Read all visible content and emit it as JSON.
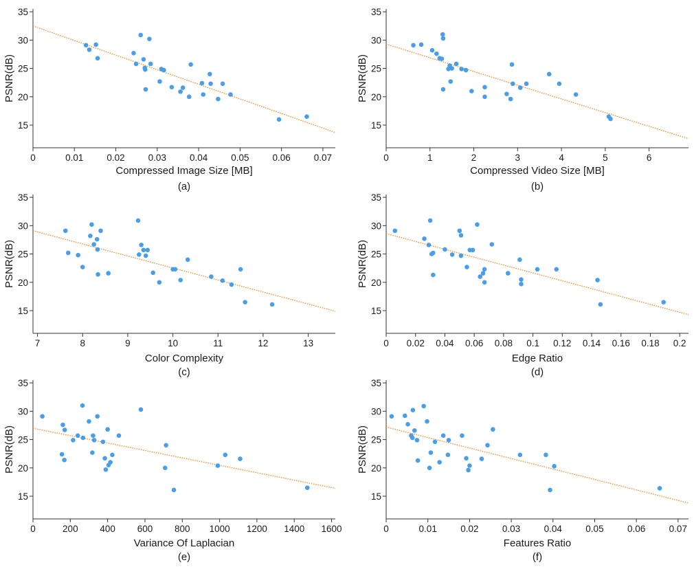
{
  "figure": {
    "ylabel_common": "PSNR(dB)"
  },
  "chart_data": [
    {
      "type": "scatter",
      "panel": "(a)",
      "xlabel": "Compressed Image Size [MB]",
      "ylabel": "PSNR(dB)",
      "xlim": [
        0,
        0.073
      ],
      "ylim": [
        11,
        35.5
      ],
      "xticks": [
        0,
        0.01,
        0.02,
        0.03,
        0.04,
        0.05,
        0.06,
        0.07
      ],
      "xtick_labels": [
        "0",
        "0.01",
        "0.02",
        "0.03",
        "0.04",
        "0.05",
        "0.06",
        "0.07"
      ],
      "yticks": [
        15,
        20,
        25,
        30,
        35
      ],
      "ytick_labels": [
        "15",
        "20",
        "25",
        "30",
        "35"
      ],
      "trendline": [
        [
          0,
          32.5
        ],
        [
          0.073,
          13.7
        ]
      ],
      "colors": {
        "points": "#4a9ee6",
        "trendline": "#e8963a"
      },
      "points": [
        [
          0.0128,
          29.1
        ],
        [
          0.0136,
          28.3
        ],
        [
          0.0152,
          29.2
        ],
        [
          0.0156,
          26.8
        ],
        [
          0.0243,
          27.7
        ],
        [
          0.0249,
          25.8
        ],
        [
          0.026,
          30.9
        ],
        [
          0.0267,
          26.6
        ],
        [
          0.027,
          25.1
        ],
        [
          0.0271,
          24.8
        ],
        [
          0.0272,
          21.3
        ],
        [
          0.0281,
          30.2
        ],
        [
          0.0284,
          25.8
        ],
        [
          0.0306,
          22.7
        ],
        [
          0.031,
          24.9
        ],
        [
          0.0316,
          24.7
        ],
        [
          0.0335,
          21.7
        ],
        [
          0.0356,
          20.9
        ],
        [
          0.0362,
          21.6
        ],
        [
          0.0377,
          20.0
        ],
        [
          0.0381,
          25.7
        ],
        [
          0.0408,
          22.4
        ],
        [
          0.0411,
          20.4
        ],
        [
          0.0427,
          24.0
        ],
        [
          0.0429,
          22.3
        ],
        [
          0.0447,
          19.6
        ],
        [
          0.0458,
          22.3
        ],
        [
          0.0477,
          20.4
        ],
        [
          0.0594,
          16.0
        ],
        [
          0.0661,
          16.5
        ]
      ]
    },
    {
      "type": "scatter",
      "panel": "(b)",
      "xlabel": "Compressed Video Size [MB]",
      "ylabel": "PSNR(dB)",
      "xlim": [
        0,
        6.9
      ],
      "ylim": [
        11,
        35.5
      ],
      "xticks": [
        0,
        1,
        2,
        3,
        4,
        5,
        6
      ],
      "xtick_labels": [
        "0",
        "1",
        "2",
        "3",
        "4",
        "5",
        "6"
      ],
      "yticks": [
        15,
        20,
        25,
        30,
        35
      ],
      "ytick_labels": [
        "15",
        "20",
        "25",
        "30",
        "35"
      ],
      "trendline": [
        [
          0,
          29.3
        ],
        [
          6.9,
          12.6
        ]
      ],
      "colors": {
        "points": "#4a9ee6",
        "trendline": "#e8963a"
      },
      "points": [
        [
          0.62,
          29.1
        ],
        [
          0.8,
          29.2
        ],
        [
          1.05,
          28.2
        ],
        [
          1.15,
          27.6
        ],
        [
          1.22,
          26.8
        ],
        [
          1.27,
          26.7
        ],
        [
          1.29,
          31.0
        ],
        [
          1.3,
          30.3
        ],
        [
          1.3,
          21.3
        ],
        [
          1.42,
          24.9
        ],
        [
          1.45,
          25.5
        ],
        [
          1.47,
          22.7
        ],
        [
          1.5,
          25.0
        ],
        [
          1.6,
          25.8
        ],
        [
          1.72,
          24.9
        ],
        [
          1.82,
          24.7
        ],
        [
          1.95,
          21.0
        ],
        [
          2.25,
          21.7
        ],
        [
          2.25,
          20.0
        ],
        [
          2.75,
          20.5
        ],
        [
          2.84,
          19.6
        ],
        [
          2.87,
          25.7
        ],
        [
          2.89,
          22.3
        ],
        [
          3.06,
          21.6
        ],
        [
          3.2,
          22.3
        ],
        [
          3.72,
          24.0
        ],
        [
          3.95,
          22.3
        ],
        [
          4.33,
          20.4
        ],
        [
          5.08,
          16.5
        ],
        [
          5.12,
          16.1
        ]
      ]
    },
    {
      "type": "scatter",
      "panel": "(c)",
      "xlabel": "Color Complexity",
      "ylabel": "PSNR(dB)",
      "xlim": [
        6.9,
        13.6
      ],
      "ylim": [
        11,
        35.5
      ],
      "xticks": [
        7,
        8,
        9,
        10,
        11,
        12,
        13
      ],
      "xtick_labels": [
        "7",
        "8",
        "9",
        "10",
        "11",
        "12",
        "13"
      ],
      "yticks": [
        15,
        20,
        25,
        30,
        35
      ],
      "ytick_labels": [
        "15",
        "20",
        "25",
        "30",
        "35"
      ],
      "trendline": [
        [
          6.9,
          29.1
        ],
        [
          13.6,
          14.9
        ]
      ],
      "colors": {
        "points": "#4a9ee6",
        "trendline": "#e8963a"
      },
      "points": [
        [
          7.62,
          29.1
        ],
        [
          7.68,
          25.2
        ],
        [
          7.9,
          24.8
        ],
        [
          8.0,
          22.7
        ],
        [
          8.17,
          28.2
        ],
        [
          8.2,
          30.2
        ],
        [
          8.25,
          26.7
        ],
        [
          8.32,
          27.6
        ],
        [
          8.33,
          25.8
        ],
        [
          8.34,
          21.4
        ],
        [
          8.4,
          29.1
        ],
        [
          8.57,
          21.6
        ],
        [
          9.23,
          30.9
        ],
        [
          9.25,
          24.9
        ],
        [
          9.3,
          26.6
        ],
        [
          9.35,
          25.7
        ],
        [
          9.4,
          24.7
        ],
        [
          9.44,
          25.7
        ],
        [
          9.56,
          21.7
        ],
        [
          9.7,
          20.0
        ],
        [
          10.0,
          22.3
        ],
        [
          10.05,
          22.3
        ],
        [
          10.17,
          20.4
        ],
        [
          10.33,
          24.0
        ],
        [
          10.85,
          21.0
        ],
        [
          11.1,
          20.3
        ],
        [
          11.3,
          19.6
        ],
        [
          11.5,
          22.3
        ],
        [
          11.6,
          16.5
        ],
        [
          12.2,
          16.1
        ]
      ]
    },
    {
      "type": "scatter",
      "panel": "(d)",
      "xlabel": "Edge Ratio",
      "ylabel": "PSNR(dB)",
      "xlim": [
        0,
        0.206
      ],
      "ylim": [
        11,
        35.5
      ],
      "xticks": [
        0,
        0.02,
        0.04,
        0.06,
        0.08,
        0.1,
        0.12,
        0.14,
        0.16,
        0.18,
        0.2
      ],
      "xtick_labels": [
        "0",
        "0.02",
        "0.04",
        "0.06",
        "0.08",
        "0.1",
        "0.12",
        "0.14",
        "0.16",
        "0.18",
        "0.2"
      ],
      "yticks": [
        15,
        20,
        25,
        30,
        35
      ],
      "ytick_labels": [
        "15",
        "20",
        "25",
        "30",
        "35"
      ],
      "trendline": [
        [
          0,
          28.6
        ],
        [
          0.206,
          14.3
        ]
      ],
      "colors": {
        "points": "#4a9ee6",
        "trendline": "#e8963a"
      },
      "points": [
        [
          0.006,
          29.1
        ],
        [
          0.026,
          27.7
        ],
        [
          0.029,
          26.6
        ],
        [
          0.03,
          30.9
        ],
        [
          0.031,
          25.0
        ],
        [
          0.032,
          25.2
        ],
        [
          0.032,
          21.3
        ],
        [
          0.04,
          25.8
        ],
        [
          0.045,
          24.9
        ],
        [
          0.05,
          29.1
        ],
        [
          0.051,
          28.3
        ],
        [
          0.051,
          24.7
        ],
        [
          0.055,
          22.7
        ],
        [
          0.057,
          25.7
        ],
        [
          0.059,
          25.7
        ],
        [
          0.062,
          30.2
        ],
        [
          0.064,
          21.0
        ],
        [
          0.066,
          21.6
        ],
        [
          0.067,
          22.3
        ],
        [
          0.067,
          20.0
        ],
        [
          0.072,
          26.7
        ],
        [
          0.083,
          21.6
        ],
        [
          0.091,
          24.0
        ],
        [
          0.092,
          20.5
        ],
        [
          0.092,
          19.7
        ],
        [
          0.103,
          22.3
        ],
        [
          0.116,
          22.3
        ],
        [
          0.144,
          20.4
        ],
        [
          0.146,
          16.1
        ],
        [
          0.189,
          16.5
        ]
      ]
    },
    {
      "type": "scatter",
      "panel": "(e)",
      "xlabel": "Variance Of Laplacian",
      "ylabel": "PSNR(dB)",
      "xlim": [
        0,
        1620
      ],
      "ylim": [
        11,
        35.5
      ],
      "xticks": [
        0,
        200,
        400,
        600,
        800,
        1000,
        1200,
        1400,
        1600
      ],
      "xtick_labels": [
        "0",
        "200",
        "400",
        "600",
        "800",
        "1000",
        "1200",
        "1400",
        "1600"
      ],
      "yticks": [
        15,
        20,
        25,
        30,
        35
      ],
      "ytick_labels": [
        "15",
        "20",
        "25",
        "30",
        "35"
      ],
      "trendline": [
        [
          0,
          27.0
        ],
        [
          1620,
          16.4
        ]
      ],
      "colors": {
        "points": "#4a9ee6",
        "trendline": "#e8963a"
      },
      "points": [
        [
          50,
          29.1
        ],
        [
          155,
          22.4
        ],
        [
          160,
          27.6
        ],
        [
          168,
          21.4
        ],
        [
          170,
          26.7
        ],
        [
          215,
          24.9
        ],
        [
          240,
          25.7
        ],
        [
          265,
          31.0
        ],
        [
          268,
          25.3
        ],
        [
          300,
          28.2
        ],
        [
          318,
          22.7
        ],
        [
          322,
          25.7
        ],
        [
          328,
          24.9
        ],
        [
          345,
          29.1
        ],
        [
          375,
          24.6
        ],
        [
          385,
          21.7
        ],
        [
          390,
          19.7
        ],
        [
          400,
          26.8
        ],
        [
          405,
          20.5
        ],
        [
          415,
          21.0
        ],
        [
          425,
          22.3
        ],
        [
          460,
          25.7
        ],
        [
          578,
          30.3
        ],
        [
          708,
          20.0
        ],
        [
          713,
          24.0
        ],
        [
          755,
          16.1
        ],
        [
          990,
          20.4
        ],
        [
          1030,
          22.3
        ],
        [
          1110,
          21.6
        ],
        [
          1470,
          16.5
        ]
      ]
    },
    {
      "type": "scatter",
      "panel": "(f)",
      "xlabel": "Features Ratio",
      "ylabel": "PSNR(dB)",
      "xlim": [
        0,
        0.0725
      ],
      "ylim": [
        11,
        35.5
      ],
      "xticks": [
        0,
        0.01,
        0.02,
        0.03,
        0.04,
        0.05,
        0.06,
        0.07
      ],
      "xtick_labels": [
        "0",
        "0.01",
        "0.02",
        "0.03",
        "0.04",
        "0.05",
        "0.06",
        "0.07"
      ],
      "yticks": [
        15,
        20,
        25,
        30,
        35
      ],
      "ytick_labels": [
        "15",
        "20",
        "25",
        "30",
        "35"
      ],
      "trendline": [
        [
          0,
          27.2
        ],
        [
          0.0725,
          13.8
        ]
      ],
      "colors": {
        "points": "#4a9ee6",
        "trendline": "#e8963a"
      },
      "points": [
        [
          0.0013,
          29.1
        ],
        [
          0.0045,
          29.2
        ],
        [
          0.0052,
          27.7
        ],
        [
          0.006,
          25.7
        ],
        [
          0.0063,
          25.3
        ],
        [
          0.0064,
          30.2
        ],
        [
          0.0068,
          26.6
        ],
        [
          0.0074,
          24.9
        ],
        [
          0.0076,
          21.3
        ],
        [
          0.009,
          30.9
        ],
        [
          0.0098,
          28.2
        ],
        [
          0.0104,
          20.0
        ],
        [
          0.0107,
          22.7
        ],
        [
          0.0117,
          24.6
        ],
        [
          0.0128,
          21.0
        ],
        [
          0.0137,
          25.7
        ],
        [
          0.0148,
          22.3
        ],
        [
          0.015,
          24.9
        ],
        [
          0.0182,
          25.7
        ],
        [
          0.0192,
          21.7
        ],
        [
          0.0197,
          19.6
        ],
        [
          0.02,
          20.4
        ],
        [
          0.0229,
          21.6
        ],
        [
          0.0243,
          24.0
        ],
        [
          0.0256,
          26.8
        ],
        [
          0.0321,
          22.3
        ],
        [
          0.0383,
          22.3
        ],
        [
          0.0393,
          16.1
        ],
        [
          0.0403,
          20.3
        ],
        [
          0.0656,
          16.4
        ]
      ]
    }
  ]
}
